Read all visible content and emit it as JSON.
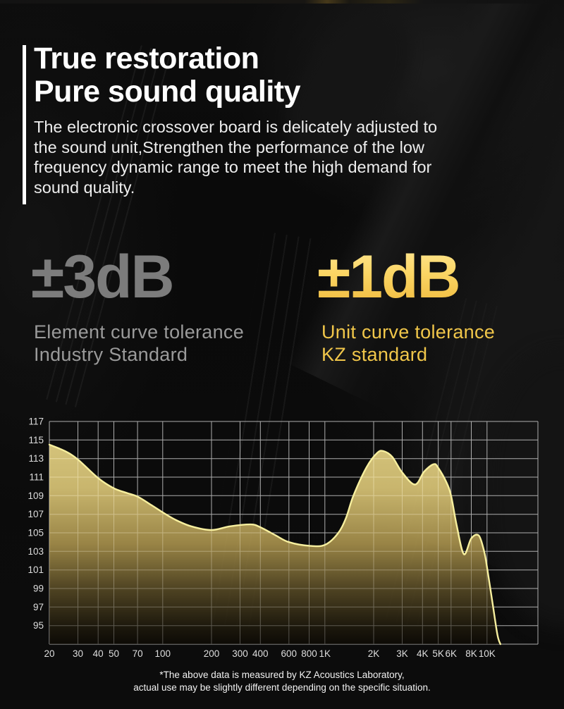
{
  "page": {
    "title": "True restoration\nPure sound quality",
    "paragraph": "The electronic crossover board is delicately adjusted to\nthe sound unit,Strengthen the performance of the low\nfrequency dynamic range to meet the high demand for\nsound quality.",
    "footnote": "*The above data is measured by KZ Acoustics Laboratory,\nactual use may be slightly different depending on the specific situation."
  },
  "stats": {
    "industry": {
      "value": "±3dB",
      "label": "Element curve tolerance\nIndustry Standard"
    },
    "kz": {
      "value": "±1dB",
      "label": "Unit curve tolerance\nKZ standard"
    }
  },
  "colors": {
    "title_text": "#ffffff",
    "body_text": "#ededed",
    "industry_value": "#7c7c7c",
    "industry_label": "#9a9a9a",
    "kz_value_gradient": [
      "#ffe896",
      "#fbd564",
      "#eeb83a"
    ],
    "kz_label": "#f0c64a",
    "grid_line": "#c9c9c9",
    "tick_text": "#dedede",
    "curve_stroke": "#f7ef9e",
    "area_fill_top": "#f0de8e",
    "area_fill_bottom": "#0d0a05"
  },
  "chart_data": {
    "type": "area",
    "title": "",
    "xlabel": "",
    "ylabel": "",
    "x_scale": "log",
    "grid": true,
    "x_axis": {
      "min_hz": 20,
      "max_hz": 20600,
      "ticks": [
        {
          "hz": 20,
          "label": "20"
        },
        {
          "hz": 30,
          "label": "30"
        },
        {
          "hz": 40,
          "label": "40"
        },
        {
          "hz": 50,
          "label": "50"
        },
        {
          "hz": 70,
          "label": "70"
        },
        {
          "hz": 100,
          "label": "100"
        },
        {
          "hz": 200,
          "label": "200"
        },
        {
          "hz": 300,
          "label": "300"
        },
        {
          "hz": 400,
          "label": "400"
        },
        {
          "hz": 600,
          "label": "600"
        },
        {
          "hz": 800,
          "label": "800"
        },
        {
          "hz": 1000,
          "label": "1K"
        },
        {
          "hz": 2000,
          "label": "2K"
        },
        {
          "hz": 3000,
          "label": "3K"
        },
        {
          "hz": 4000,
          "label": "4K"
        },
        {
          "hz": 5000,
          "label": "5K"
        },
        {
          "hz": 6000,
          "label": "6K"
        },
        {
          "hz": 8000,
          "label": "8K"
        },
        {
          "hz": 10000,
          "label": "10K"
        }
      ]
    },
    "y_axis": {
      "unit": "dB",
      "min_db": 93,
      "max_db": 117,
      "tick_min": 95,
      "tick_max": 117,
      "tick_step": 2,
      "tick_labels": [
        "117",
        "115",
        "113",
        "111",
        "109",
        "107",
        "105",
        "103",
        "101",
        "99",
        "97",
        "95"
      ]
    },
    "points": [
      [
        20,
        114.5
      ],
      [
        25,
        113.8
      ],
      [
        30,
        112.9
      ],
      [
        40,
        110.9
      ],
      [
        50,
        109.8
      ],
      [
        60,
        109.3
      ],
      [
        70,
        108.9
      ],
      [
        85,
        108.0
      ],
      [
        100,
        107.2
      ],
      [
        120,
        106.4
      ],
      [
        150,
        105.7
      ],
      [
        200,
        105.3
      ],
      [
        260,
        105.7
      ],
      [
        350,
        105.9
      ],
      [
        400,
        105.6
      ],
      [
        500,
        104.7
      ],
      [
        600,
        104.0
      ],
      [
        800,
        103.6
      ],
      [
        1000,
        103.7
      ],
      [
        1200,
        104.9
      ],
      [
        1350,
        106.6
      ],
      [
        1500,
        109.0
      ],
      [
        1800,
        112.0
      ],
      [
        2100,
        113.6
      ],
      [
        2300,
        113.8
      ],
      [
        2600,
        113.2
      ],
      [
        3000,
        111.5
      ],
      [
        3600,
        110.2
      ],
      [
        4100,
        111.6
      ],
      [
        4700,
        112.4
      ],
      [
        5000,
        112.0
      ],
      [
        5600,
        110.5
      ],
      [
        6000,
        109.0
      ],
      [
        6500,
        105.8
      ],
      [
        7200,
        102.7
      ],
      [
        8000,
        104.4
      ],
      [
        8900,
        104.7
      ],
      [
        9600,
        103.0
      ],
      [
        10000,
        101.3
      ],
      [
        10800,
        97.5
      ],
      [
        11600,
        94.0
      ],
      [
        12100,
        93.0
      ]
    ]
  }
}
